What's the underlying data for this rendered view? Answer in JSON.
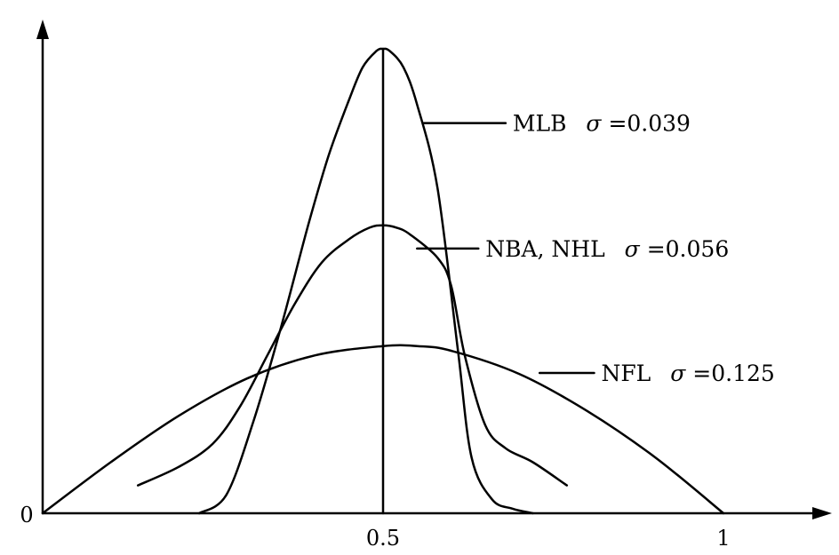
{
  "chart_data": {
    "type": "line",
    "title": "",
    "xlabel": "",
    "ylabel": "",
    "xlim": [
      0,
      1.12
    ],
    "ylim": [
      0,
      1.05
    ],
    "x_ticks": [
      {
        "value": 0.5,
        "label": "0.5"
      },
      {
        "value": 1,
        "label": "1"
      }
    ],
    "origin_label": "0",
    "grid": false,
    "legend": "none",
    "center_line": {
      "x": 0.5
    },
    "series": [
      {
        "name": "MLB",
        "sigma_symbol": "σ",
        "sigma_text": "=0.039",
        "x": [
          0.23,
          0.27,
          0.31,
          0.35,
          0.39,
          0.42,
          0.45,
          0.47,
          0.49,
          0.5,
          0.51,
          0.53,
          0.55,
          0.58,
          0.61,
          0.63,
          0.66,
          0.69,
          0.72
        ],
        "y": [
          0.0,
          0.04,
          0.2,
          0.4,
          0.62,
          0.77,
          0.89,
          0.96,
          0.995,
          1.0,
          0.995,
          0.96,
          0.88,
          0.7,
          0.35,
          0.12,
          0.03,
          0.01,
          0.0
        ]
      },
      {
        "name": "NBA, NHL",
        "sigma_symbol": "σ",
        "sigma_text": "=0.056",
        "x": [
          0.14,
          0.2,
          0.25,
          0.29,
          0.33,
          0.37,
          0.41,
          0.45,
          0.48,
          0.5,
          0.52,
          0.54,
          0.58,
          0.6,
          0.62,
          0.65,
          0.68,
          0.72,
          0.77
        ],
        "y": [
          0.06,
          0.1,
          0.15,
          0.23,
          0.34,
          0.45,
          0.54,
          0.59,
          0.615,
          0.62,
          0.615,
          0.6,
          0.55,
          0.49,
          0.34,
          0.19,
          0.14,
          0.11,
          0.06
        ]
      },
      {
        "name": "NFL",
        "sigma_symbol": "σ",
        "sigma_text": "=0.125",
        "x": [
          0.0,
          0.1,
          0.2,
          0.3,
          0.4,
          0.5,
          0.55,
          0.6,
          0.7,
          0.8,
          0.9,
          1.0
        ],
        "y": [
          0.0,
          0.11,
          0.21,
          0.29,
          0.34,
          0.36,
          0.36,
          0.35,
          0.3,
          0.22,
          0.12,
          0.0
        ]
      }
    ],
    "annotations": [
      {
        "series": "MLB",
        "from": [
          0.56,
          0.84
        ],
        "to": [
          0.68,
          0.84
        ]
      },
      {
        "series": "NBA, NHL",
        "from": [
          0.55,
          0.57
        ],
        "to": [
          0.64,
          0.57
        ]
      },
      {
        "series": "NFL",
        "from": [
          0.73,
          0.302
        ],
        "to": [
          0.81,
          0.302
        ]
      }
    ]
  }
}
